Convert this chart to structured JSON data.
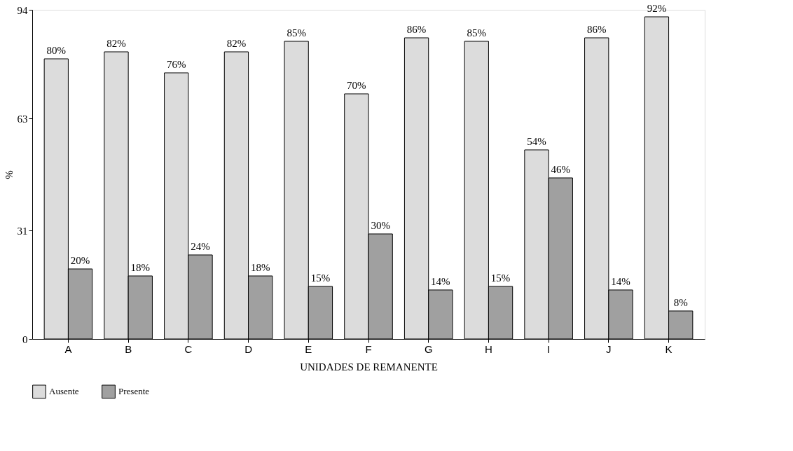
{
  "chart_data": {
    "type": "bar",
    "xlabel": "UNIDADES DE REMANENTE",
    "ylabel": "%",
    "categories": [
      "A",
      "B",
      "C",
      "D",
      "E",
      "F",
      "G",
      "H",
      "I",
      "J",
      "K"
    ],
    "series": [
      {
        "name": "Ausente",
        "color": "#dcdcdc",
        "values": [
          80,
          82,
          76,
          82,
          85,
          70,
          86,
          85,
          54,
          86,
          92
        ],
        "value_labels": [
          "80%",
          "82%",
          "76%",
          "82%",
          "85%",
          "70%",
          "86%",
          "85%",
          "54%",
          "86%",
          "92%"
        ]
      },
      {
        "name": "Presente",
        "color": "#a0a0a0",
        "values": [
          20,
          18,
          24,
          18,
          15,
          30,
          14,
          15,
          46,
          14,
          8
        ],
        "value_labels": [
          "20%",
          "18%",
          "24%",
          "18%",
          "15%",
          "30%",
          "14%",
          "15%",
          "46%",
          "14%",
          "8%"
        ]
      }
    ],
    "ylim": [
      0,
      94
    ],
    "yticks": [
      0,
      31,
      63,
      94
    ],
    "grid": false,
    "legend": "bottom left"
  }
}
